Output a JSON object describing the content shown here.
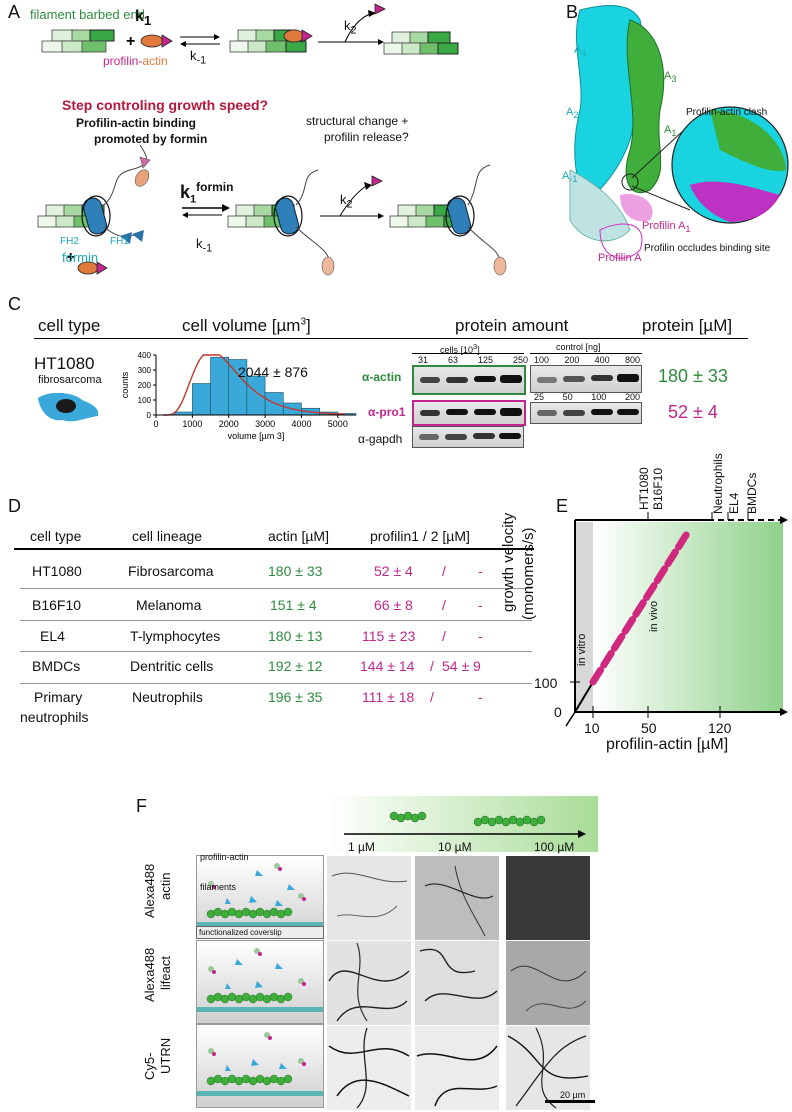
{
  "panel_labels": {
    "a": "A",
    "b": "B",
    "c": "C",
    "d": "D",
    "e": "E",
    "f": "F"
  },
  "panelA": {
    "barbed_end": "filament barbed end",
    "k1": "k",
    "k1_sub": "1",
    "km1": "k",
    "km1_sub": "-1",
    "k2": "k",
    "k2_sub": "2",
    "profilin": "profilin-",
    "actin": "actin",
    "question": "Step controling growth speed?",
    "formin_note_1": "Profilin-actin binding",
    "formin_note_2": "promoted by formin",
    "structural_1": "structural change +",
    "structural_2": "profilin release?",
    "kformin": "k",
    "kformin_sub": "1",
    "kformin_sup": "formin",
    "k2b": "k",
    "k2b_sub": "2",
    "km1b": "k",
    "km1b_sub": "-1",
    "fh2": "FH2",
    "fh1": "FH1",
    "formin": "formin"
  },
  "panelB": {
    "a4": "A",
    "a4_sub": "4",
    "a3": "A",
    "a3_sub": "3",
    "a2": "A",
    "a2_sub": "2",
    "a1": "A",
    "a1_sub": "1",
    "am1": "A",
    "am1_sub": "-1",
    "clash": "Profilin-actin clash",
    "profilin_a1": "Profilin A",
    "profilin_a1_sub": "1",
    "profilin_a": "Profilin A",
    "occludes": "Profilin occludes binding site"
  },
  "panelC": {
    "h_cell_type": "cell type",
    "h_cell_volume": "cell volume [µm",
    "h_cell_volume_sup": "3",
    "h_cell_volume_end": "]",
    "h_protein_amount": "protein amount",
    "h_protein_um": "protein [µM]",
    "cell": "HT1080",
    "cell_sub": "fibrosarcoma",
    "volume_value": "2044 ± 876",
    "counts": "counts",
    "xlabel": "volume [µm",
    "xlabel_sup": "3",
    "xlabel_end": "]",
    "cells_label": "cells [10",
    "cells_label_sup": "3",
    "cells_label_end": "]",
    "control_label": "control [ng]",
    "cells_ticks": [
      "31",
      "63",
      "125",
      "250"
    ],
    "control_ticks_top": [
      "100",
      "200",
      "400",
      "800"
    ],
    "control_ticks_bottom": [
      "25",
      "50",
      "100",
      "200"
    ],
    "alpha_actin": "α-actin",
    "alpha_pro1": "α-pro1",
    "alpha_gapdh": "α-gapdh",
    "actin_um": "180 ± 33",
    "pro1_um": "52 ± 4"
  },
  "chart_data": {
    "type": "bar",
    "categories": [
      "500",
      "1000",
      "1500",
      "2000",
      "2500",
      "3000",
      "3500",
      "4000",
      "4500",
      "5000"
    ],
    "values": [
      20,
      210,
      385,
      370,
      260,
      150,
      80,
      45,
      20,
      10
    ],
    "xlabel": "volume [µm 3]",
    "ylabel": "counts",
    "ylim": [
      0,
      400
    ],
    "yticks": [
      "0",
      "100",
      "200",
      "300",
      "400"
    ],
    "xticks": [
      "0",
      "1000",
      "2000",
      "3000",
      "4000",
      "5000"
    ],
    "xlim": [
      0,
      5500
    ],
    "bar_color": "#3aa8d8",
    "fit_color": "#c0392b"
  },
  "panelD": {
    "headers": [
      "cell type",
      "cell lineage",
      "actin [µM]",
      "profilin1 / 2 [µM]"
    ],
    "rows": [
      {
        "type": "HT1080",
        "lineage": "Fibrosarcoma",
        "actin": "180 ± 33",
        "pfn1": "52 ± 4",
        "sep": "/",
        "pfn2": "-"
      },
      {
        "type": "B16F10",
        "lineage": "Melanoma",
        "actin": "151 ± 4",
        "pfn1": "66 ± 8",
        "sep": "/",
        "pfn2": "-"
      },
      {
        "type": "EL4",
        "lineage": "T-lymphocytes",
        "actin": "180 ± 13",
        "pfn1": "115 ± 23",
        "sep": "/",
        "pfn2": "-"
      },
      {
        "type": "BMDCs",
        "lineage": "Dentritic cells",
        "actin": "192 ± 12",
        "pfn1": "144 ± 14",
        "sep": "/",
        "pfn2": "54 ± 9"
      },
      {
        "type": "Primary",
        "type2": "neutrophils",
        "lineage": "Neutrophils",
        "actin": "196 ± 35",
        "pfn1": "111 ± 18",
        "sep": "/",
        "pfn2": "-"
      }
    ]
  },
  "panelE": {
    "ylabel_1": "growth velocity",
    "ylabel_2": "(monomers/s)",
    "xlabel": "profilin-actin [µM]",
    "xticks": [
      "10",
      "50",
      "120"
    ],
    "yticks": [
      "0",
      "100"
    ],
    "in_vitro": "in vitro",
    "in_vivo": "in vivo",
    "top_labels": [
      "HT1080",
      "B16F10",
      "Neutrophils",
      "EL4",
      "BMDCs"
    ]
  },
  "panelF": {
    "concentrations": [
      "1 µM",
      "10 µM",
      "100 µM"
    ],
    "rows": [
      {
        "label_1": "Alexa488",
        "label_2": "actin"
      },
      {
        "label_1": "Alexa488",
        "label_2": "lifeact"
      },
      {
        "label_1": "Cy5-",
        "label_2": "UTRN"
      }
    ],
    "profilin_actin": "profilin-actin",
    "filaments": "filaments",
    "coverslip": "functionalized coverslip",
    "scalebar": "20 µm"
  },
  "colors": {
    "green": "#2e8b3e",
    "magenta": "#c2268c",
    "crimson": "#b5183a",
    "cyan": "#1aa8b5",
    "orange": "#e07a3c",
    "light_green": "#8fd18a"
  }
}
